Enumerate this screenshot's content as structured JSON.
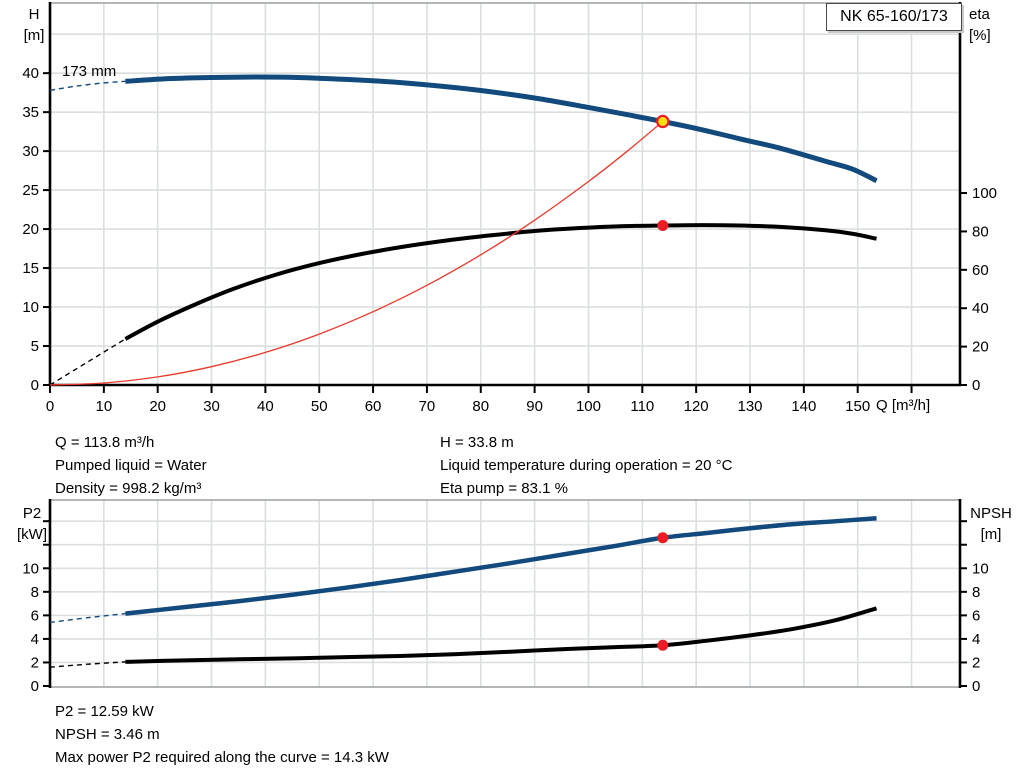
{
  "title_box": {
    "label": "NK 65-160/173"
  },
  "impeller_label": "173 mm",
  "axis_labels": {
    "h": "H",
    "h_unit": "[m]",
    "eta": "eta",
    "eta_unit": "[%]",
    "q": "Q [m³/h]",
    "p2": "P2",
    "p2_unit": "[kW]",
    "npsh": "NPSH",
    "npsh_unit": "[m]"
  },
  "results_top": {
    "col1": [
      "Q = 113.8 m³/h",
      "Pumped liquid = Water",
      "Density = 998.2 kg/m³"
    ],
    "col2": [
      "H = 33.8 m",
      "Liquid temperature during operation = 20 °C",
      "Eta pump = 83.1 %"
    ]
  },
  "results_bottom": [
    "P2 = 12.59 kW",
    "NPSH = 3.46 m",
    "Max power P2 required along the curve = 14.3 kW"
  ],
  "colors": {
    "blue": "#124a7e",
    "black": "#000000",
    "red_thin": "#e8392b",
    "dot_red": "#ec1c24",
    "dot_yellow": "#ffe10a",
    "grid": "#dcdfdf",
    "frame": "#9b9fa3"
  },
  "duty_point": {
    "q": 113.8,
    "h": 33.8,
    "eta": 83.1,
    "p2": 12.59,
    "npsh": 3.46,
    "p2_max": 14.3
  },
  "chart_data": [
    {
      "type": "line",
      "name": "qh-eta",
      "title": "NK 65-160/173",
      "x": {
        "label": "Q [m³/h]",
        "min": 0,
        "max": 169,
        "grid": [
          10,
          20,
          30,
          40,
          50,
          60,
          70,
          80,
          90,
          100,
          110,
          120,
          130,
          140,
          150,
          160
        ],
        "tick_marks": [
          0,
          10,
          20,
          30,
          40,
          50,
          60,
          70,
          80,
          90,
          100,
          110,
          120,
          130,
          140,
          150,
          160
        ],
        "tick_labels": [
          0,
          10,
          20,
          30,
          40,
          50,
          60,
          70,
          80,
          90,
          100,
          110,
          120,
          130,
          140,
          150
        ]
      },
      "left": {
        "label": "H [m]",
        "min": 0,
        "max": 49,
        "grid": [
          5,
          10,
          15,
          20,
          25,
          30,
          35,
          40,
          45
        ],
        "tick_marks": [
          0,
          5,
          10,
          15,
          20,
          25,
          30,
          35,
          40
        ],
        "tick_labels": [
          0,
          5,
          10,
          15,
          20,
          25,
          30,
          35,
          40
        ]
      },
      "right": {
        "label": "eta [%]",
        "min": 0,
        "max": 199,
        "tick_marks": [
          0,
          20,
          40,
          60,
          80,
          100
        ],
        "tick_labels": [
          0,
          20,
          40,
          60,
          80,
          100
        ]
      },
      "series": [
        {
          "name": "head-curve-extension",
          "axis": "left",
          "style": "dashed",
          "width": 1.4,
          "color": "blue",
          "points": [
            [
              0,
              37.8
            ],
            [
              5,
              38.35
            ],
            [
              10,
              38.75
            ],
            [
              14,
              38.95
            ]
          ]
        },
        {
          "name": "head-curve",
          "axis": "left",
          "style": "solid",
          "width": 5,
          "color": "blue",
          "points": [
            [
              14,
              38.95
            ],
            [
              22,
              39.3
            ],
            [
              30,
              39.45
            ],
            [
              38,
              39.5
            ],
            [
              46,
              39.45
            ],
            [
              55,
              39.2
            ],
            [
              64,
              38.85
            ],
            [
              73,
              38.3
            ],
            [
              82,
              37.6
            ],
            [
              91,
              36.7
            ],
            [
              100,
              35.6
            ],
            [
              107,
              34.7
            ],
            [
              113.8,
              33.8
            ],
            [
              121,
              32.75
            ],
            [
              128,
              31.6
            ],
            [
              136,
              30.3
            ],
            [
              144,
              28.7
            ],
            [
              149,
              27.7
            ],
            [
              153.5,
              26.2
            ]
          ]
        },
        {
          "name": "eta-curve-extension",
          "axis": "right",
          "style": "dashed",
          "width": 1.4,
          "color": "black",
          "points": [
            [
              0,
              0
            ],
            [
              7,
              12
            ],
            [
              14,
              24
            ]
          ]
        },
        {
          "name": "eta-curve",
          "axis": "right",
          "style": "solid",
          "width": 4,
          "color": "black",
          "points": [
            [
              14,
              24
            ],
            [
              20,
              33
            ],
            [
              27,
              42
            ],
            [
              34,
              50
            ],
            [
              42,
              57.5
            ],
            [
              50,
              63.5
            ],
            [
              58,
              68.3
            ],
            [
              66,
              72.2
            ],
            [
              74,
              75.4
            ],
            [
              82,
              78
            ],
            [
              90,
              80.2
            ],
            [
              98,
              81.7
            ],
            [
              106,
              82.7
            ],
            [
              113.8,
              83.1
            ],
            [
              121,
              83.3
            ],
            [
              128,
              83.1
            ],
            [
              136,
              82.3
            ],
            [
              144,
              80.6
            ],
            [
              149,
              78.8
            ],
            [
              153.5,
              76.2
            ]
          ]
        },
        {
          "name": "system-curve",
          "axis": "left",
          "style": "solid",
          "width": 1.3,
          "color": "red_thin",
          "points": [
            [
              0,
              0
            ],
            [
              10,
              0.26
            ],
            [
              20,
              1.04
            ],
            [
              30,
              2.35
            ],
            [
              40,
              4.18
            ],
            [
              50,
              6.53
            ],
            [
              60,
              9.4
            ],
            [
              70,
              12.79
            ],
            [
              80,
              16.7
            ],
            [
              90,
              21.14
            ],
            [
              100,
              26.1
            ],
            [
              107,
              29.88
            ],
            [
              113.8,
              33.8
            ]
          ]
        }
      ],
      "markers": [
        {
          "name": "duty-point",
          "x": 113.8,
          "y": 33.8,
          "axis": "left",
          "fill": "dot_yellow",
          "stroke": "dot_red",
          "stroke_width": 2.2,
          "r": 5.6
        },
        {
          "name": "eta-point",
          "x": 113.8,
          "y": 83.1,
          "axis": "right",
          "fill": "dot_red",
          "r": 5.5
        }
      ]
    },
    {
      "type": "line",
      "name": "p2-npsh",
      "x": {
        "label": "",
        "min": 0,
        "max": 169,
        "grid": [
          10,
          20,
          30,
          40,
          50,
          60,
          70,
          80,
          90,
          100,
          110,
          120,
          130,
          140,
          150,
          160
        ],
        "tick_marks": [],
        "tick_labels": []
      },
      "left": {
        "label": "P2 [kW]",
        "min": 0,
        "max": 15.8,
        "grid": [
          2,
          4,
          6,
          8,
          10,
          12,
          14
        ],
        "tick_marks": [
          0,
          2,
          4,
          6,
          8,
          10,
          12,
          14
        ],
        "tick_labels": [
          0,
          2,
          4,
          6,
          8,
          10
        ]
      },
      "right": {
        "label": "NPSH [m]",
        "min": 0,
        "max": 15.8,
        "tick_marks": [
          0,
          2,
          4,
          6,
          8,
          10,
          12,
          14
        ],
        "tick_labels": [
          0,
          2,
          4,
          6,
          8,
          10
        ]
      },
      "series": [
        {
          "name": "p2-curve-extension",
          "axis": "left",
          "style": "dashed",
          "width": 1.4,
          "color": "blue",
          "points": [
            [
              0,
              5.4
            ],
            [
              7,
              5.8
            ],
            [
              14,
              6.15
            ]
          ]
        },
        {
          "name": "p2-curve",
          "axis": "left",
          "style": "solid",
          "width": 4.5,
          "color": "blue",
          "points": [
            [
              14,
              6.15
            ],
            [
              25,
              6.7
            ],
            [
              35,
              7.2
            ],
            [
              45,
              7.75
            ],
            [
              55,
              8.35
            ],
            [
              65,
              9.0
            ],
            [
              75,
              9.7
            ],
            [
              85,
              10.4
            ],
            [
              95,
              11.15
            ],
            [
              105,
              11.9
            ],
            [
              113.8,
              12.59
            ],
            [
              122,
              13.0
            ],
            [
              130,
              13.4
            ],
            [
              138,
              13.75
            ],
            [
              146,
              14.0
            ],
            [
              153.5,
              14.25
            ]
          ]
        },
        {
          "name": "npsh-curve-extension",
          "axis": "left",
          "style": "dashed",
          "width": 1.4,
          "color": "black",
          "points": [
            [
              0,
              1.6
            ],
            [
              7,
              1.85
            ],
            [
              14,
              2.05
            ]
          ]
        },
        {
          "name": "npsh-curve",
          "axis": "left",
          "style": "solid",
          "width": 4,
          "color": "black",
          "points": [
            [
              14,
              2.05
            ],
            [
              25,
              2.18
            ],
            [
              35,
              2.27
            ],
            [
              45,
              2.35
            ],
            [
              55,
              2.45
            ],
            [
              65,
              2.55
            ],
            [
              75,
              2.7
            ],
            [
              85,
              2.9
            ],
            [
              95,
              3.12
            ],
            [
              105,
              3.3
            ],
            [
              113.8,
              3.46
            ],
            [
              122,
              3.85
            ],
            [
              130,
              4.3
            ],
            [
              138,
              4.85
            ],
            [
              146,
              5.6
            ],
            [
              153.5,
              6.6
            ]
          ]
        }
      ],
      "markers": [
        {
          "name": "p2-point",
          "x": 113.8,
          "y": 12.59,
          "axis": "left",
          "fill": "dot_red",
          "r": 5.5
        },
        {
          "name": "npsh-point",
          "x": 113.8,
          "y": 3.46,
          "axis": "left",
          "fill": "dot_red",
          "r": 5.5
        }
      ]
    }
  ]
}
